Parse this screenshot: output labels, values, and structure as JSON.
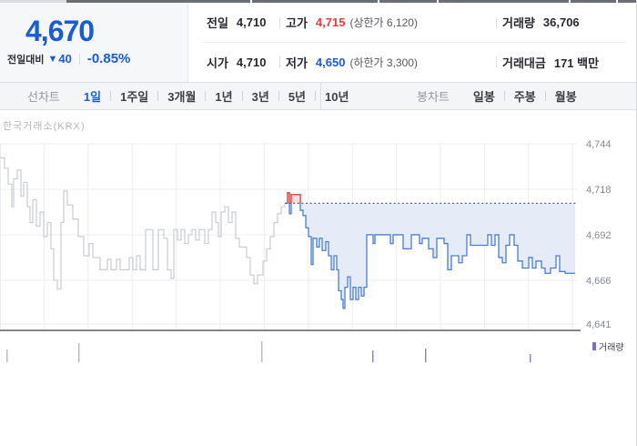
{
  "header": {
    "price": "4,670",
    "change_label": "전일대비",
    "change_direction": "▼",
    "change_value": "40",
    "change_percent": "-0.85%",
    "stats": {
      "row1": [
        {
          "label": "전일",
          "value": "4,710"
        },
        {
          "label": "고가",
          "value": "4,715",
          "paren": "(상한가 6,120)"
        },
        {
          "label": "거래량",
          "value": "36,706"
        }
      ],
      "row2": [
        {
          "label": "시가",
          "value": "4,710"
        },
        {
          "label": "저가",
          "value": "4,650",
          "paren": "(하한가 3,300)"
        },
        {
          "label": "거래대금",
          "value": "171 백만"
        }
      ]
    }
  },
  "toolbar": {
    "left_group_label": "선차트",
    "left_tabs": [
      {
        "label": "1일",
        "active": true
      },
      {
        "label": "1주일",
        "active": false
      },
      {
        "label": "3개월",
        "active": false
      },
      {
        "label": "1년",
        "active": false
      },
      {
        "label": "3년",
        "active": false
      },
      {
        "label": "5년",
        "active": false
      },
      {
        "label": "10년",
        "active": false
      }
    ],
    "right_group_label": "봉차트",
    "right_tabs": [
      {
        "label": "일봉"
      },
      {
        "label": "주봉"
      },
      {
        "label": "월봉"
      }
    ]
  },
  "chart_data": {
    "type": "line",
    "exchange_label": "한국거래소(KRX)",
    "prev_close": 4710,
    "high": 4715,
    "low": 4650,
    "close": 4670,
    "y_ticks": [
      {
        "label": "4,744",
        "value": 4744
      },
      {
        "label": "4,718",
        "value": 4718
      },
      {
        "label": "4,692",
        "value": 4692
      },
      {
        "label": "4,666",
        "value": 4666
      },
      {
        "label": "4,641",
        "value": 4641
      }
    ],
    "series": [
      {
        "name": "prev_day_session",
        "points": [
          [
            0,
            4736
          ],
          [
            5,
            4730
          ],
          [
            9,
            4721
          ],
          [
            13,
            4708
          ],
          [
            15,
            4724
          ],
          [
            19,
            4729
          ],
          [
            23,
            4714
          ],
          [
            26,
            4722
          ],
          [
            30,
            4708
          ],
          [
            33,
            4699
          ],
          [
            36,
            4712
          ],
          [
            40,
            4697
          ],
          [
            44,
            4705
          ],
          [
            48,
            4691
          ],
          [
            52,
            4699
          ],
          [
            56,
            4684
          ],
          [
            59,
            4666
          ],
          [
            63,
            4661
          ],
          [
            67,
            4699
          ],
          [
            70,
            4717
          ],
          [
            74,
            4709
          ],
          [
            80,
            4701
          ],
          [
            86,
            4691
          ],
          [
            92,
            4680
          ],
          [
            98,
            4687
          ],
          [
            102,
            4679
          ],
          [
            110,
            4672
          ],
          [
            118,
            4678
          ],
          [
            122,
            4672
          ],
          [
            128,
            4678
          ],
          [
            132,
            4672
          ],
          [
            142,
            4679
          ],
          [
            146,
            4672
          ],
          [
            150,
            4680
          ],
          [
            154,
            4672
          ],
          [
            160,
            4695
          ],
          [
            168,
            4672
          ],
          [
            174,
            4695
          ],
          [
            180,
            4690
          ],
          [
            184,
            4672
          ],
          [
            188,
            4667
          ],
          [
            191,
            4695
          ],
          [
            195,
            4689
          ],
          [
            199,
            4695
          ],
          [
            203,
            4687
          ],
          [
            207,
            4692
          ],
          [
            211,
            4695
          ],
          [
            215,
            4689
          ],
          [
            219,
            4695
          ],
          [
            225,
            4687
          ],
          [
            229,
            4695
          ],
          [
            233,
            4705
          ],
          [
            237,
            4699
          ],
          [
            240,
            4691
          ],
          [
            243,
            4705
          ],
          [
            247,
            4708
          ],
          [
            251,
            4699
          ],
          [
            255,
            4705
          ],
          [
            259,
            4690
          ],
          [
            263,
            4685
          ],
          [
            271,
            4679
          ],
          [
            275,
            4669
          ],
          [
            279,
            4664
          ],
          [
            283,
            4669
          ],
          [
            289,
            4677
          ],
          [
            293,
            4684
          ],
          [
            297,
            4691
          ],
          [
            301,
            4699
          ],
          [
            305,
            4704
          ],
          [
            309,
            4708
          ],
          [
            313,
            4710
          ]
        ]
      },
      {
        "name": "today_session",
        "points": [
          [
            313,
            4710
          ],
          [
            316,
            4716
          ],
          [
            318,
            4704
          ],
          [
            320,
            4715
          ],
          [
            330,
            4706
          ],
          [
            333,
            4703
          ],
          [
            336,
            4696
          ],
          [
            339,
            4691
          ],
          [
            342,
            4675
          ],
          [
            344,
            4690
          ],
          [
            348,
            4685
          ],
          [
            351,
            4690
          ],
          [
            354,
            4683
          ],
          [
            358,
            4688
          ],
          [
            361,
            4680
          ],
          [
            364,
            4672
          ],
          [
            367,
            4680
          ],
          [
            370,
            4672
          ],
          [
            372,
            4660
          ],
          [
            375,
            4655
          ],
          [
            377,
            4650
          ],
          [
            379,
            4662
          ],
          [
            382,
            4668
          ],
          [
            385,
            4655
          ],
          [
            388,
            4662
          ],
          [
            391,
            4655
          ],
          [
            394,
            4662
          ],
          [
            397,
            4657
          ],
          [
            400,
            4662
          ],
          [
            403,
            4692
          ],
          [
            410,
            4687
          ],
          [
            412,
            4692
          ],
          [
            429,
            4687
          ],
          [
            432,
            4692
          ],
          [
            443,
            4684
          ],
          [
            452,
            4692
          ],
          [
            461,
            4687
          ],
          [
            464,
            4690
          ],
          [
            471,
            4684
          ],
          [
            476,
            4679
          ],
          [
            480,
            4690
          ],
          [
            488,
            4687
          ],
          [
            492,
            4672
          ],
          [
            496,
            4680
          ],
          [
            504,
            4676
          ],
          [
            508,
            4680
          ],
          [
            513,
            4692
          ],
          [
            517,
            4686
          ],
          [
            536,
            4692
          ],
          [
            540,
            4686
          ],
          [
            544,
            4692
          ],
          [
            548,
            4679
          ],
          [
            552,
            4676
          ],
          [
            556,
            4686
          ],
          [
            560,
            4692
          ],
          [
            565,
            4686
          ],
          [
            569,
            4677
          ],
          [
            574,
            4673
          ],
          [
            581,
            4679
          ],
          [
            585,
            4673
          ],
          [
            589,
            4677
          ],
          [
            595,
            4673
          ],
          [
            599,
            4670
          ],
          [
            605,
            4673
          ],
          [
            611,
            4680
          ],
          [
            615,
            4671
          ],
          [
            621,
            4670
          ],
          [
            632,
            4670
          ]
        ]
      }
    ],
    "volume": {
      "legend_label": "거래량",
      "prev_bars": [
        {
          "x": 7,
          "size": 14
        },
        {
          "x": 86,
          "size": 21
        },
        {
          "x": 287,
          "size": 23
        }
      ],
      "today_bars": [
        {
          "x": 409,
          "size": 13
        },
        {
          "x": 467,
          "size": 15
        },
        {
          "x": 582,
          "size": 9
        }
      ]
    },
    "colors": {
      "accent_blue": "#1a5cd6",
      "up_red": "#ee3b3b",
      "prev_line": "#c7cbd3",
      "today_line": "#4a7dd6",
      "area_fill": "#e5ecf8",
      "area_fill_red": "#fadede",
      "ref_line": "#5f6368",
      "grid": "#ebedf0",
      "axis_text": "#85898e",
      "volume_prev": "#b9bec6",
      "volume_today": "#9084cc",
      "chart_border": "#5a5f66"
    }
  }
}
